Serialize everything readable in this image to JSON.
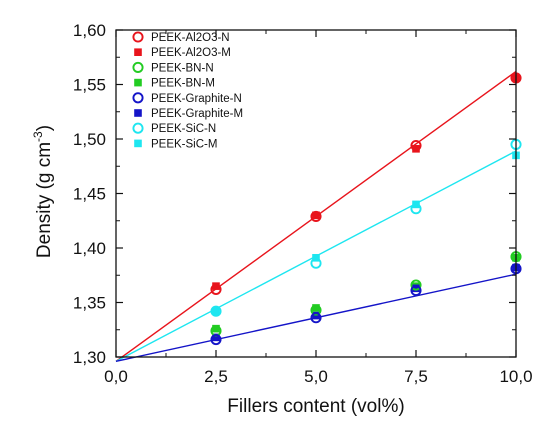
{
  "chart_data": {
    "type": "scatter",
    "xlabel": "Fillers content (vol%)",
    "ylabel": {
      "main": "Density (g cm",
      "sup": "-3",
      "tail": ")"
    },
    "xlim": [
      0,
      10
    ],
    "ylim": [
      1.3,
      1.6
    ],
    "xticks": [
      "0,0",
      "2,5",
      "5,0",
      "7,5",
      "10,0"
    ],
    "xtick_values": [
      0,
      2.5,
      5,
      7.5,
      10
    ],
    "yticks": [
      "1,30",
      "1,35",
      "1,40",
      "1,45",
      "1,50",
      "1,55",
      "1,60"
    ],
    "ytick_values": [
      1.3,
      1.35,
      1.4,
      1.45,
      1.5,
      1.55,
      1.6
    ],
    "grid": false,
    "legend_position": "top-left",
    "series": [
      {
        "name": "PEEK-Al2O3-N",
        "marker": "circle-open",
        "color": "#e8141c",
        "x": [
          2.5,
          5,
          7.5,
          10
        ],
        "y": [
          1.362,
          1.429,
          1.494,
          1.556
        ]
      },
      {
        "name": "PEEK-Al2O3-M",
        "marker": "square-filled",
        "color": "#e8141c",
        "x": [
          2.5,
          5,
          7.5,
          10
        ],
        "y": [
          1.365,
          1.43,
          1.491,
          1.556
        ]
      },
      {
        "name": "PEEK-BN-N",
        "marker": "circle-open",
        "color": "#22cc22",
        "x": [
          2.5,
          5,
          7.5,
          10
        ],
        "y": [
          1.324,
          1.343,
          1.366,
          1.392
        ]
      },
      {
        "name": "PEEK-BN-M",
        "marker": "square-filled",
        "color": "#22cc22",
        "x": [
          2.5,
          5,
          7.5,
          10
        ],
        "y": [
          1.326,
          1.345,
          1.365,
          1.391
        ]
      },
      {
        "name": "PEEK-Graphite-N",
        "marker": "circle-open",
        "color": "#1414c8",
        "x": [
          2.5,
          5,
          7.5,
          10
        ],
        "y": [
          1.316,
          1.336,
          1.361,
          1.381
        ]
      },
      {
        "name": "PEEK-Graphite-M",
        "marker": "square-filled",
        "color": "#1414c8",
        "x": [
          2.5,
          5,
          7.5,
          10
        ],
        "y": [
          1.318,
          1.338,
          1.363,
          1.382
        ]
      },
      {
        "name": "PEEK-SiC-N",
        "marker": "circle-open",
        "color": "#1ee6f0",
        "x": [
          2.5,
          5,
          7.5,
          10
        ],
        "y": [
          1.342,
          1.386,
          1.436,
          1.495
        ]
      },
      {
        "name": "PEEK-SiC-M",
        "marker": "square-filled",
        "color": "#1ee6f0",
        "x": [
          2.5,
          5,
          7.5,
          10
        ],
        "y": [
          1.342,
          1.391,
          1.44,
          1.485
        ]
      }
    ],
    "trend_lines": [
      {
        "color": "#e8141c",
        "x": [
          0,
          10
        ],
        "y": [
          1.296,
          1.562
        ]
      },
      {
        "color": "#1ee6f0",
        "x": [
          0,
          10
        ],
        "y": [
          1.296,
          1.489
        ]
      },
      {
        "color": "#1414c8",
        "x": [
          0,
          10
        ],
        "y": [
          1.296,
          1.376
        ]
      }
    ]
  }
}
